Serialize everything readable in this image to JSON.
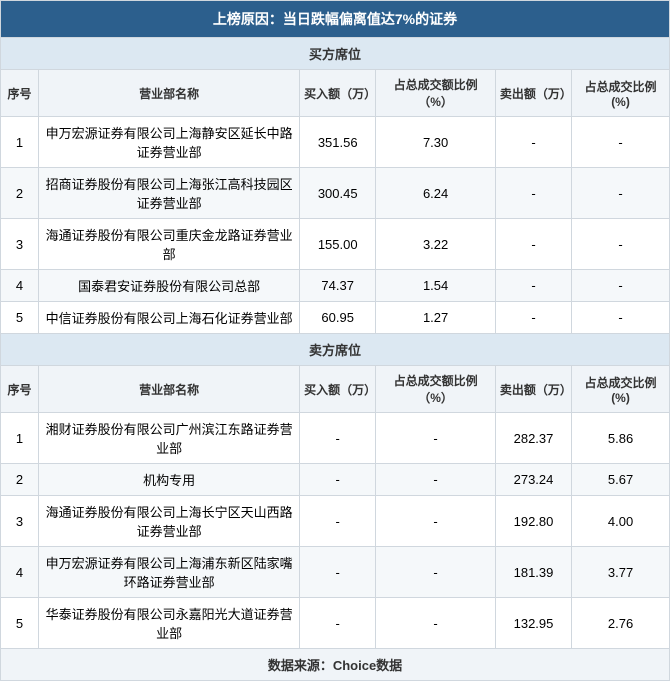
{
  "title": "上榜原因：当日跌幅偏离值达7%的证券",
  "buyer_section": "买方席位",
  "seller_section": "卖方席位",
  "headers": {
    "seq": "序号",
    "name": "营业部名称",
    "buy_amt": "买入额（万）",
    "buy_pct": "占总成交额比例（%）",
    "sell_amt": "卖出额（万）",
    "sell_pct": "占总成交比例(%)"
  },
  "buyers": [
    {
      "seq": "1",
      "name": "申万宏源证券有限公司上海静安区延长中路证券营业部",
      "buy_amt": "351.56",
      "buy_pct": "7.30",
      "sell_amt": "-",
      "sell_pct": "-"
    },
    {
      "seq": "2",
      "name": "招商证券股份有限公司上海张江高科技园区证券营业部",
      "buy_amt": "300.45",
      "buy_pct": "6.24",
      "sell_amt": "-",
      "sell_pct": "-"
    },
    {
      "seq": "3",
      "name": "海通证券股份有限公司重庆金龙路证券营业部",
      "buy_amt": "155.00",
      "buy_pct": "3.22",
      "sell_amt": "-",
      "sell_pct": "-"
    },
    {
      "seq": "4",
      "name": "国泰君安证券股份有限公司总部",
      "buy_amt": "74.37",
      "buy_pct": "1.54",
      "sell_amt": "-",
      "sell_pct": "-"
    },
    {
      "seq": "5",
      "name": "中信证券股份有限公司上海石化证券营业部",
      "buy_amt": "60.95",
      "buy_pct": "1.27",
      "sell_amt": "-",
      "sell_pct": "-"
    }
  ],
  "sellers": [
    {
      "seq": "1",
      "name": "湘财证券股份有限公司广州滨江东路证券营业部",
      "buy_amt": "-",
      "buy_pct": "-",
      "sell_amt": "282.37",
      "sell_pct": "5.86"
    },
    {
      "seq": "2",
      "name": "机构专用",
      "buy_amt": "-",
      "buy_pct": "-",
      "sell_amt": "273.24",
      "sell_pct": "5.67"
    },
    {
      "seq": "3",
      "name": "海通证券股份有限公司上海长宁区天山西路证券营业部",
      "buy_amt": "-",
      "buy_pct": "-",
      "sell_amt": "192.80",
      "sell_pct": "4.00"
    },
    {
      "seq": "4",
      "name": "申万宏源证券有限公司上海浦东新区陆家嘴环路证券营业部",
      "buy_amt": "-",
      "buy_pct": "-",
      "sell_amt": "181.39",
      "sell_pct": "3.77"
    },
    {
      "seq": "5",
      "name": "华泰证券股份有限公司永嘉阳光大道证券营业部",
      "buy_amt": "-",
      "buy_pct": "-",
      "sell_amt": "132.95",
      "sell_pct": "2.76"
    }
  ],
  "footer": "数据来源：Choice数据",
  "colors": {
    "title_bg": "#2c5f8d",
    "title_fg": "#ffffff",
    "section_bg": "#dce8f2",
    "header_bg": "#f0f4f8",
    "row_even_bg": "#ffffff",
    "row_odd_bg": "#f5f8fa",
    "border": "#d0d7de"
  }
}
